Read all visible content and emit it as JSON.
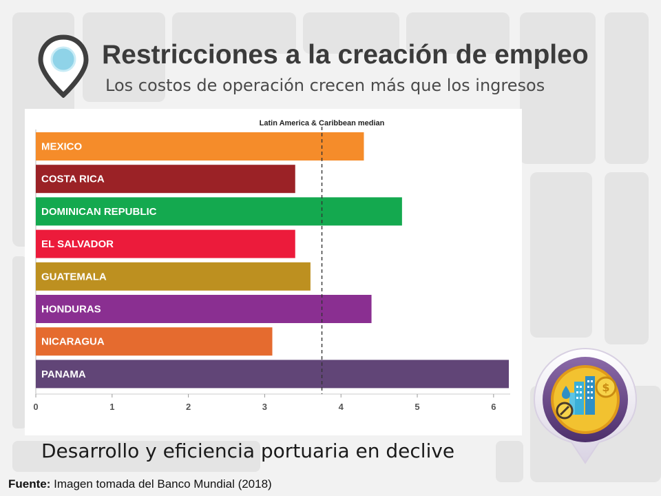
{
  "slide": {
    "title": "Restricciones a la creación de empleo",
    "subtitle": "Los costos de operación crecen más que los ingresos",
    "bottom_text": "Desarrollo y eficiencia portuaria en declive",
    "source_label": "Fuente:",
    "source_text": "Imagen tomada del Banco Mundial  (2018)",
    "icons": [
      "location-pin-icon",
      "city-finance-badge-icon"
    ]
  },
  "chart_data": {
    "type": "bar",
    "orientation": "horizontal",
    "categories": [
      "MEXICO",
      "COSTA RICA",
      "DOMINICAN REPUBLIC",
      "EL SALVADOR",
      "GUATEMALA",
      "HONDURAS",
      "NICARAGUA",
      "PANAMA"
    ],
    "values": [
      4.3,
      3.4,
      4.8,
      3.4,
      3.6,
      4.4,
      3.1,
      6.2
    ],
    "colors": [
      "#f58c2a",
      "#9b2226",
      "#14a94f",
      "#ec1b3b",
      "#bd9020",
      "#8a2f91",
      "#e56b2f",
      "#614577"
    ],
    "reference_line": {
      "label": "Latin America & Caribbean median",
      "value": 3.75
    },
    "xlim": [
      0,
      6.2
    ],
    "xticks": [
      "0",
      "1",
      "2",
      "3",
      "4",
      "5",
      "6"
    ],
    "title": "",
    "xlabel": "",
    "ylabel": ""
  }
}
